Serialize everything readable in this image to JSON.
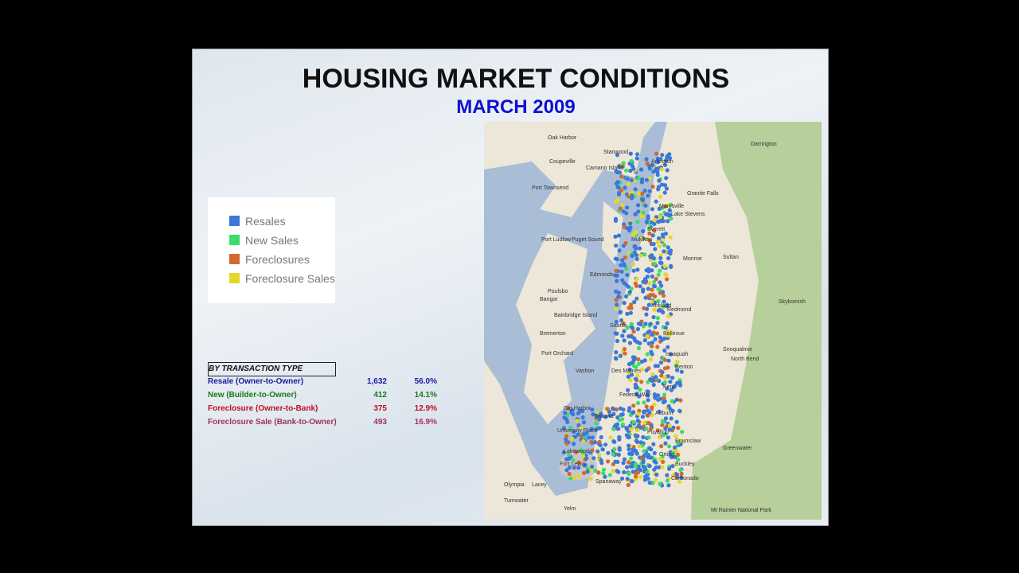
{
  "slide": {
    "title": "HOUSING MARKET CONDITIONS",
    "subtitle": "MARCH 2009",
    "legend": [
      "Resales",
      "New Sales",
      "Foreclosures",
      "Foreclosure Sales"
    ],
    "table": {
      "header": "BY TRANSACTION TYPE",
      "rows": [
        [
          "Resale (Owner-to-Owner)",
          "1,632",
          "56.0%"
        ],
        [
          "New (Builder-to-Owner)",
          "412",
          "14.1%"
        ],
        [
          "Foreclosure (Owner-to-Bank)",
          "375",
          "12.9%"
        ],
        [
          "Foreclosure Sale (Bank-to-Owner)",
          "493",
          "16.9%"
        ]
      ]
    },
    "map": {
      "labels": [
        "Oak Harbor",
        "Coupeville",
        "Camano Island",
        "Stanwood",
        "Arlington",
        "Port Townsend",
        "Marysville",
        "Granite Falls",
        "Lake Stevens",
        "Everett",
        "Port Ludlow",
        "Puget Sound",
        "Mukilteo",
        "Monroe",
        "Sultan",
        "Edmonds",
        "Poulsbo",
        "Bangor",
        "Bainbridge Island",
        "Kirkland",
        "Redmond",
        "Seattle",
        "Bellevue",
        "Bremerton",
        "Port Orchard",
        "Issaquah",
        "Snoqualmie",
        "North Bend",
        "Renton",
        "Kent",
        "Vashon",
        "Des Moines",
        "Federal Way",
        "Auburn",
        "Gig Harbor",
        "Tacoma",
        "University Place",
        "Enumclaw",
        "Puyallup",
        "Lakewood",
        "Fort Lewis",
        "Spanaway",
        "Olympia",
        "Lacey",
        "Tumwater",
        "Yelm",
        "Orting",
        "Buckley",
        "Carbonado",
        "Greenwater",
        "Mt Rainier National Park",
        "Darrington",
        "Skykomish"
      ]
    }
  }
}
